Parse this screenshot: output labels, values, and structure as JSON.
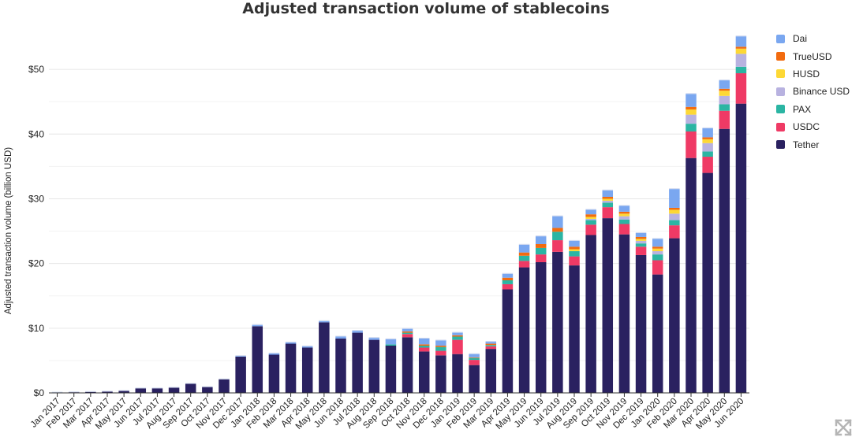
{
  "chart_data": {
    "type": "bar",
    "stacked": true,
    "title": "Adjusted transaction volume of stablecoins",
    "xlabel": "",
    "ylabel": "Adjusted transaction volume (billion USD)",
    "ylim": [
      0,
      55
    ],
    "yticks": [
      0,
      10,
      20,
      30,
      40,
      50
    ],
    "ytick_labels": [
      "$0",
      "$10",
      "$20",
      "$30",
      "$40",
      "$50"
    ],
    "grid": true,
    "legend_position": "top-right",
    "categories": [
      "Jan 2017",
      "Feb 2017",
      "Mar 2017",
      "Apr 2017",
      "May 2017",
      "Jun 2017",
      "Jul 2017",
      "Aug 2017",
      "Sep 2017",
      "Oct 2017",
      "Nov 2017",
      "Dec 2017",
      "Jan 2018",
      "Feb 2018",
      "Mar 2018",
      "Apr 2018",
      "May 2018",
      "Jun 2018",
      "Jul 2018",
      "Aug 2018",
      "Sep 2018",
      "Oct 2018",
      "Nov 2018",
      "Dec 2018",
      "Jan 2019",
      "Feb 2019",
      "Mar 2019",
      "Apr 2019",
      "May 2019",
      "Jun 2019",
      "Jul 2019",
      "Aug 2019",
      "Sep 2019",
      "Oct 2019",
      "Nov 2019",
      "Dec 2019",
      "Jan 2020",
      "Feb 2020",
      "Mar 2020",
      "Apr 2020",
      "May 2020",
      "Jun 2020"
    ],
    "series": [
      {
        "name": "Tether",
        "color": "#2a2160",
        "values": [
          0.05,
          0.1,
          0.15,
          0.2,
          0.3,
          0.7,
          0.7,
          0.8,
          1.4,
          0.9,
          2.1,
          5.6,
          10.3,
          5.9,
          7.6,
          7.0,
          10.9,
          8.4,
          9.3,
          8.2,
          7.3,
          8.6,
          6.4,
          5.8,
          6.0,
          4.3,
          6.8,
          16.0,
          19.4,
          20.2,
          21.8,
          19.7,
          24.4,
          27.0,
          24.5,
          21.3,
          18.3,
          23.9,
          36.3,
          34.0,
          40.8,
          44.7
        ]
      },
      {
        "name": "USDC",
        "color": "#ef3a65",
        "values": [
          0,
          0,
          0,
          0,
          0,
          0,
          0,
          0,
          0,
          0,
          0,
          0,
          0,
          0,
          0,
          0,
          0,
          0,
          0,
          0,
          0,
          0.5,
          0.6,
          0.7,
          2.2,
          0.8,
          0.4,
          0.8,
          1.0,
          1.2,
          1.8,
          1.4,
          1.6,
          1.7,
          1.6,
          1.3,
          2.2,
          2.0,
          4.1,
          2.5,
          2.8,
          4.7
        ]
      },
      {
        "name": "PAX",
        "color": "#2bb5a3",
        "values": [
          0,
          0,
          0,
          0,
          0,
          0,
          0,
          0,
          0,
          0,
          0,
          0,
          0,
          0,
          0,
          0,
          0,
          0,
          0,
          0,
          0.2,
          0.2,
          0.3,
          0.6,
          0.5,
          0.3,
          0.2,
          0.6,
          0.8,
          1.0,
          1.3,
          0.8,
          0.7,
          0.7,
          0.7,
          0.5,
          0.9,
          0.8,
          1.2,
          0.8,
          1.0,
          1.0
        ]
      },
      {
        "name": "Binance USD",
        "color": "#b8b2e0",
        "values": [
          0,
          0,
          0,
          0,
          0,
          0,
          0,
          0,
          0,
          0,
          0,
          0,
          0,
          0,
          0,
          0,
          0,
          0,
          0,
          0,
          0,
          0,
          0,
          0,
          0,
          0,
          0,
          0,
          0,
          0,
          0,
          0,
          0.2,
          0.3,
          0.5,
          0.4,
          0.5,
          1.0,
          1.4,
          1.3,
          1.3,
          2.0
        ]
      },
      {
        "name": "HUSD",
        "color": "#fdd835",
        "values": [
          0,
          0,
          0,
          0,
          0,
          0,
          0,
          0,
          0,
          0,
          0,
          0,
          0,
          0,
          0,
          0,
          0,
          0,
          0,
          0,
          0,
          0,
          0,
          0,
          0,
          0,
          0,
          0,
          0,
          0,
          0,
          0.3,
          0.3,
          0.3,
          0.4,
          0.3,
          0.4,
          0.6,
          0.8,
          0.6,
          0.8,
          0.8
        ]
      },
      {
        "name": "TrueUSD",
        "color": "#f26b0f",
        "values": [
          0,
          0,
          0,
          0,
          0,
          0,
          0,
          0,
          0,
          0,
          0,
          0,
          0,
          0,
          0,
          0,
          0,
          0,
          0,
          0,
          0,
          0.2,
          0.2,
          0.2,
          0.2,
          0.1,
          0.2,
          0.4,
          0.5,
          0.6,
          0.6,
          0.4,
          0.4,
          0.3,
          0.3,
          0.3,
          0.3,
          0.3,
          0.4,
          0.3,
          0.3,
          0.3
        ]
      },
      {
        "name": "Dai",
        "color": "#7aa7f0",
        "values": [
          0,
          0,
          0,
          0,
          0,
          0,
          0,
          0,
          0,
          0,
          0,
          0.1,
          0.2,
          0.2,
          0.2,
          0.2,
          0.2,
          0.3,
          0.3,
          0.3,
          0.8,
          0.4,
          0.9,
          0.8,
          0.4,
          0.5,
          0.3,
          0.6,
          1.2,
          1.2,
          1.8,
          0.9,
          0.7,
          1.0,
          0.9,
          0.6,
          1.2,
          2.9,
          2.0,
          1.4,
          1.3,
          1.6
        ]
      }
    ],
    "legend_order": [
      "Dai",
      "TrueUSD",
      "HUSD",
      "Binance USD",
      "PAX",
      "USDC",
      "Tether"
    ]
  },
  "icons": {
    "expand": "expand-icon"
  }
}
